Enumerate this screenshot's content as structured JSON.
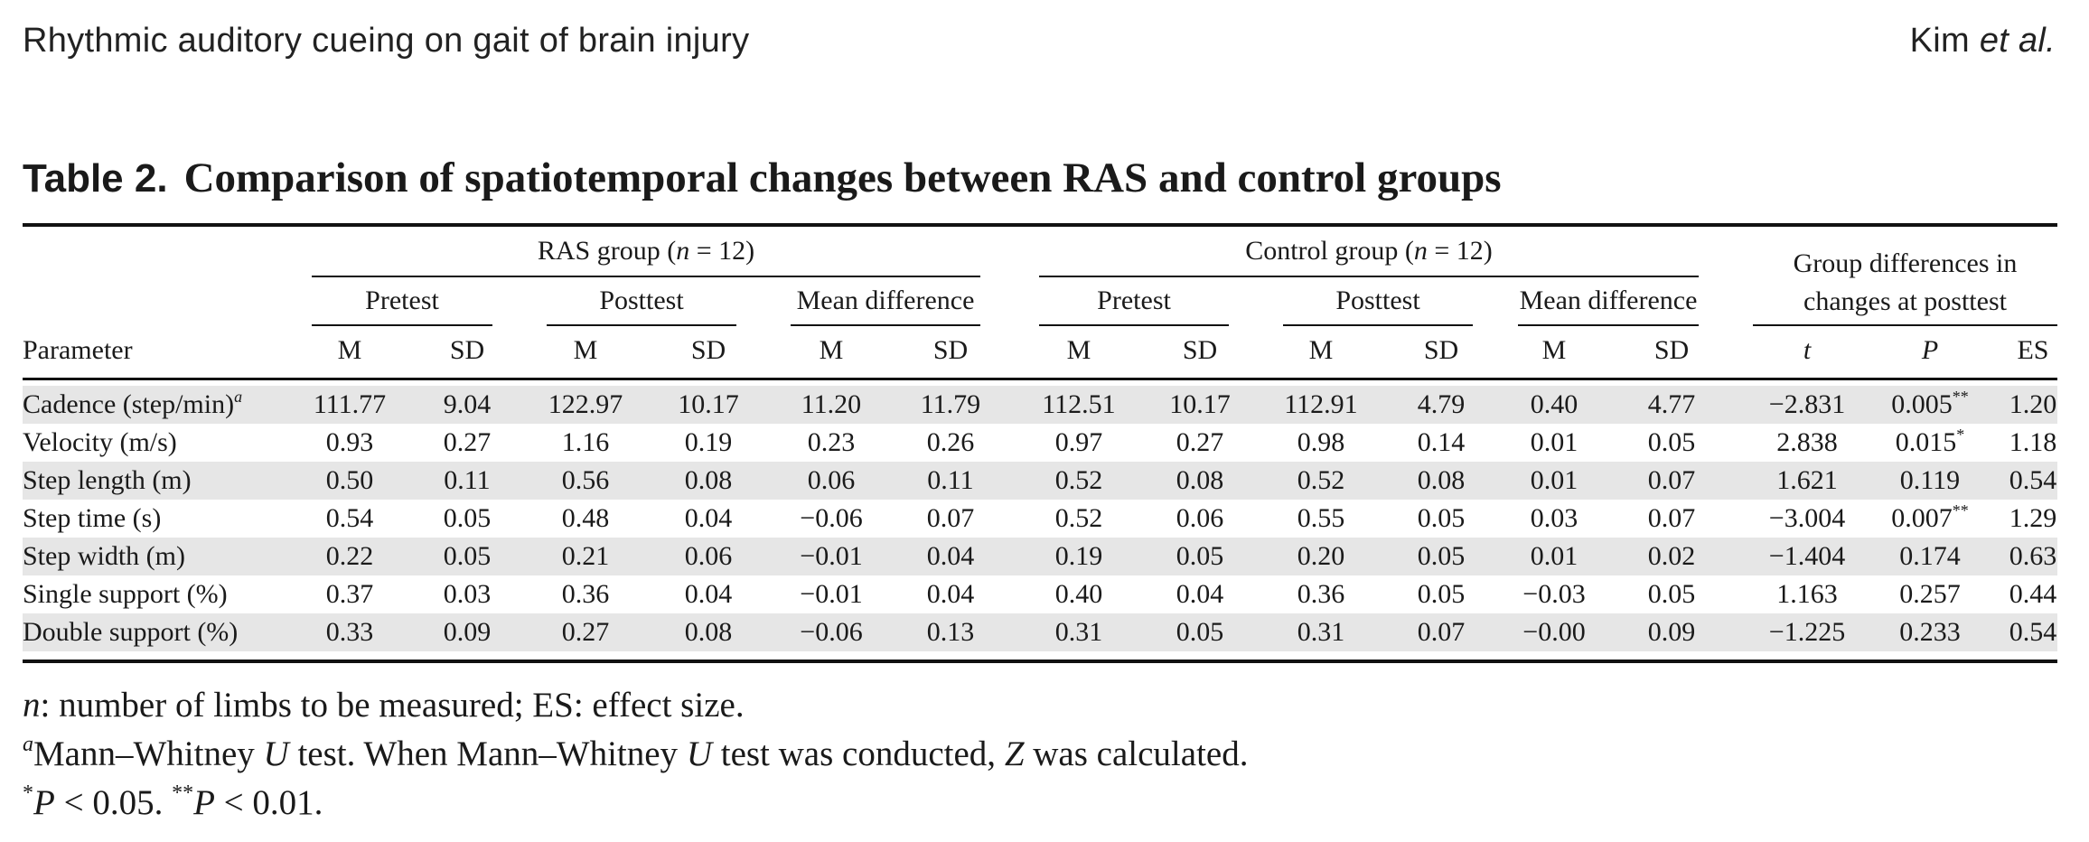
{
  "running_head": {
    "left": "Rhythmic auditory cueing on gait of brain injury",
    "right_author": "Kim",
    "right_suffix": "et al."
  },
  "caption": {
    "label": "Table 2.",
    "title": "Comparison of spatiotemporal changes between RAS and control groups"
  },
  "table": {
    "groups": {
      "ras": {
        "prefix": "RAS group (",
        "n": "n",
        "suffix": " = 12)"
      },
      "control": {
        "prefix": "Control group (",
        "n": "n",
        "suffix": " = 12)"
      },
      "differences": {
        "line1": "Group differences in",
        "line2": "changes at posttest"
      }
    },
    "subheaders": [
      "Pretest",
      "Posttest",
      "Mean difference",
      "Pretest",
      "Posttest",
      "Mean difference"
    ],
    "parameter_label": "Parameter",
    "stat_headers": [
      "M",
      "SD",
      "M",
      "SD",
      "M",
      "SD",
      "M",
      "SD",
      "M",
      "SD",
      "M",
      "SD",
      "t",
      "P",
      "ES"
    ],
    "rows": [
      {
        "param": "Cadence (step/min)",
        "param_sup": "a",
        "cells": [
          "111.77",
          "9.04",
          "122.97",
          "10.17",
          "11.20",
          "11.79",
          "112.51",
          "10.17",
          "112.91",
          "4.79",
          "0.40",
          "4.77",
          "−2.831",
          "0.005",
          "1.20"
        ],
        "p_sup": "**"
      },
      {
        "param": "Velocity (m/s)",
        "param_sup": "",
        "cells": [
          "0.93",
          "0.27",
          "1.16",
          "0.19",
          "0.23",
          "0.26",
          "0.97",
          "0.27",
          "0.98",
          "0.14",
          "0.01",
          "0.05",
          "2.838",
          "0.015",
          "1.18"
        ],
        "p_sup": "*"
      },
      {
        "param": "Step length (m)",
        "param_sup": "",
        "cells": [
          "0.50",
          "0.11",
          "0.56",
          "0.08",
          "0.06",
          "0.11",
          "0.52",
          "0.08",
          "0.52",
          "0.08",
          "0.01",
          "0.07",
          "1.621",
          "0.119",
          "0.54"
        ],
        "p_sup": ""
      },
      {
        "param": "Step time (s)",
        "param_sup": "",
        "cells": [
          "0.54",
          "0.05",
          "0.48",
          "0.04",
          "−0.06",
          "0.07",
          "0.52",
          "0.06",
          "0.55",
          "0.05",
          "0.03",
          "0.07",
          "−3.004",
          "0.007",
          "1.29"
        ],
        "p_sup": "**"
      },
      {
        "param": "Step width (m)",
        "param_sup": "",
        "cells": [
          "0.22",
          "0.05",
          "0.21",
          "0.06",
          "−0.01",
          "0.04",
          "0.19",
          "0.05",
          "0.20",
          "0.05",
          "0.01",
          "0.02",
          "−1.404",
          "0.174",
          "0.63"
        ],
        "p_sup": ""
      },
      {
        "param": "Single support (%)",
        "param_sup": "",
        "cells": [
          "0.37",
          "0.03",
          "0.36",
          "0.04",
          "−0.01",
          "0.04",
          "0.40",
          "0.04",
          "0.36",
          "0.05",
          "−0.03",
          "0.05",
          "1.163",
          "0.257",
          "0.44"
        ],
        "p_sup": ""
      },
      {
        "param": "Double support (%)",
        "param_sup": "",
        "cells": [
          "0.33",
          "0.09",
          "0.27",
          "0.08",
          "−0.06",
          "0.13",
          "0.31",
          "0.05",
          "0.31",
          "0.07",
          "−0.00",
          "0.09",
          "−1.225",
          "0.233",
          "0.54"
        ],
        "p_sup": ""
      }
    ]
  },
  "footnotes": {
    "line1": {
      "n": "n",
      "text": ": number of limbs to be measured; ES: effect size."
    },
    "line2": {
      "sup": "a",
      "t1": "Mann–Whitney ",
      "u1": "U",
      "t2": " test. When Mann–Whitney ",
      "u2": "U",
      "t3": " test was conducted, ",
      "z": "Z",
      "t4": " was calculated."
    },
    "line3": {
      "s1": "*",
      "p1": "P",
      "t1": " < 0.05. ",
      "s2": "**",
      "p2": "P",
      "t2": " < 0.01."
    }
  }
}
